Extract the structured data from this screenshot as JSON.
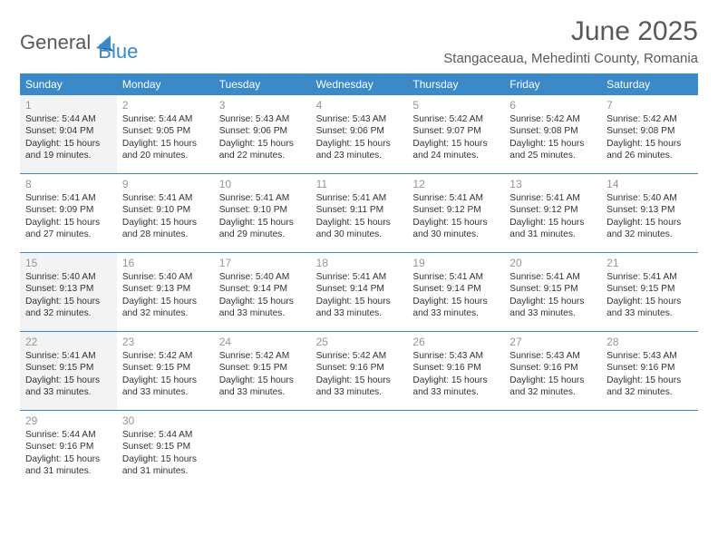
{
  "brand": {
    "word1": "General",
    "word2": "Blue"
  },
  "title": "June 2025",
  "location": "Stangaceaua, Mehedinti County, Romania",
  "colors": {
    "accent": "#3a89c9",
    "text_muted": "#939598",
    "text_body": "#333333",
    "shaded_bg": "#f3f3f3",
    "header_text": "#ffffff",
    "brand_gray": "#58595b"
  },
  "day_headers": [
    "Sunday",
    "Monday",
    "Tuesday",
    "Wednesday",
    "Thursday",
    "Friday",
    "Saturday"
  ],
  "shaded_days": [
    1,
    15,
    22
  ],
  "days": [
    {
      "n": 1,
      "sr": "5:44 AM",
      "ss": "9:04 PM",
      "dl": "15 hours and 19 minutes."
    },
    {
      "n": 2,
      "sr": "5:44 AM",
      "ss": "9:05 PM",
      "dl": "15 hours and 20 minutes."
    },
    {
      "n": 3,
      "sr": "5:43 AM",
      "ss": "9:06 PM",
      "dl": "15 hours and 22 minutes."
    },
    {
      "n": 4,
      "sr": "5:43 AM",
      "ss": "9:06 PM",
      "dl": "15 hours and 23 minutes."
    },
    {
      "n": 5,
      "sr": "5:42 AM",
      "ss": "9:07 PM",
      "dl": "15 hours and 24 minutes."
    },
    {
      "n": 6,
      "sr": "5:42 AM",
      "ss": "9:08 PM",
      "dl": "15 hours and 25 minutes."
    },
    {
      "n": 7,
      "sr": "5:42 AM",
      "ss": "9:08 PM",
      "dl": "15 hours and 26 minutes."
    },
    {
      "n": 8,
      "sr": "5:41 AM",
      "ss": "9:09 PM",
      "dl": "15 hours and 27 minutes."
    },
    {
      "n": 9,
      "sr": "5:41 AM",
      "ss": "9:10 PM",
      "dl": "15 hours and 28 minutes."
    },
    {
      "n": 10,
      "sr": "5:41 AM",
      "ss": "9:10 PM",
      "dl": "15 hours and 29 minutes."
    },
    {
      "n": 11,
      "sr": "5:41 AM",
      "ss": "9:11 PM",
      "dl": "15 hours and 30 minutes."
    },
    {
      "n": 12,
      "sr": "5:41 AM",
      "ss": "9:12 PM",
      "dl": "15 hours and 30 minutes."
    },
    {
      "n": 13,
      "sr": "5:41 AM",
      "ss": "9:12 PM",
      "dl": "15 hours and 31 minutes."
    },
    {
      "n": 14,
      "sr": "5:40 AM",
      "ss": "9:13 PM",
      "dl": "15 hours and 32 minutes."
    },
    {
      "n": 15,
      "sr": "5:40 AM",
      "ss": "9:13 PM",
      "dl": "15 hours and 32 minutes."
    },
    {
      "n": 16,
      "sr": "5:40 AM",
      "ss": "9:13 PM",
      "dl": "15 hours and 32 minutes."
    },
    {
      "n": 17,
      "sr": "5:40 AM",
      "ss": "9:14 PM",
      "dl": "15 hours and 33 minutes."
    },
    {
      "n": 18,
      "sr": "5:41 AM",
      "ss": "9:14 PM",
      "dl": "15 hours and 33 minutes."
    },
    {
      "n": 19,
      "sr": "5:41 AM",
      "ss": "9:14 PM",
      "dl": "15 hours and 33 minutes."
    },
    {
      "n": 20,
      "sr": "5:41 AM",
      "ss": "9:15 PM",
      "dl": "15 hours and 33 minutes."
    },
    {
      "n": 21,
      "sr": "5:41 AM",
      "ss": "9:15 PM",
      "dl": "15 hours and 33 minutes."
    },
    {
      "n": 22,
      "sr": "5:41 AM",
      "ss": "9:15 PM",
      "dl": "15 hours and 33 minutes."
    },
    {
      "n": 23,
      "sr": "5:42 AM",
      "ss": "9:15 PM",
      "dl": "15 hours and 33 minutes."
    },
    {
      "n": 24,
      "sr": "5:42 AM",
      "ss": "9:15 PM",
      "dl": "15 hours and 33 minutes."
    },
    {
      "n": 25,
      "sr": "5:42 AM",
      "ss": "9:16 PM",
      "dl": "15 hours and 33 minutes."
    },
    {
      "n": 26,
      "sr": "5:43 AM",
      "ss": "9:16 PM",
      "dl": "15 hours and 33 minutes."
    },
    {
      "n": 27,
      "sr": "5:43 AM",
      "ss": "9:16 PM",
      "dl": "15 hours and 32 minutes."
    },
    {
      "n": 28,
      "sr": "5:43 AM",
      "ss": "9:16 PM",
      "dl": "15 hours and 32 minutes."
    },
    {
      "n": 29,
      "sr": "5:44 AM",
      "ss": "9:16 PM",
      "dl": "15 hours and 31 minutes."
    },
    {
      "n": 30,
      "sr": "5:44 AM",
      "ss": "9:15 PM",
      "dl": "15 hours and 31 minutes."
    }
  ],
  "labels": {
    "sunrise": "Sunrise:",
    "sunset": "Sunset:",
    "daylight": "Daylight:"
  }
}
